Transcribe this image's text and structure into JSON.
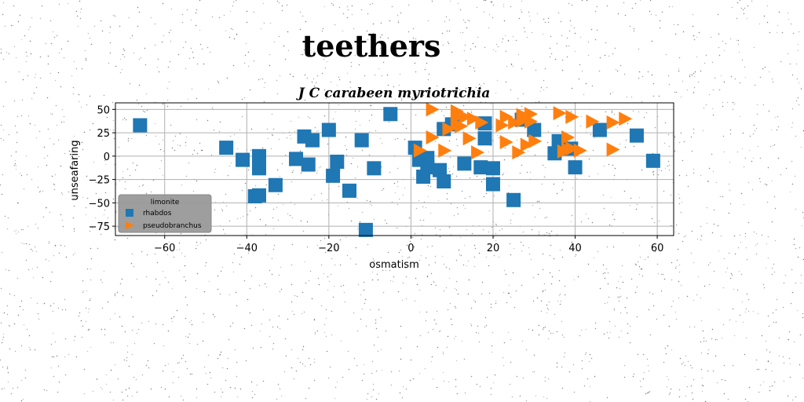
{
  "figure": {
    "suptitle": "teethers"
  },
  "chart_data": {
    "type": "scatter",
    "title": "J C carabeen myriotrichia",
    "xlabel": "osmatism",
    "ylabel": "unseafaring",
    "xlim": [
      -72,
      64
    ],
    "ylim": [
      -85,
      57
    ],
    "xticks": [
      -60,
      -40,
      -20,
      0,
      20,
      40,
      60
    ],
    "yticks": [
      -75,
      -50,
      -25,
      0,
      25,
      50
    ],
    "grid": true,
    "legend": {
      "title": "limonite",
      "placement": "lower-left"
    },
    "series": [
      {
        "name": "rhabdos",
        "marker": "square",
        "color": "#1f77b4",
        "points": [
          [
            -66,
            33
          ],
          [
            -45,
            9
          ],
          [
            -41,
            -4
          ],
          [
            -37,
            -13
          ],
          [
            -37,
            0
          ],
          [
            -38,
            -43
          ],
          [
            -37,
            -42
          ],
          [
            -33,
            -31
          ],
          [
            -28,
            -3
          ],
          [
            -26,
            21
          ],
          [
            -25,
            -9
          ],
          [
            -24,
            17
          ],
          [
            -20,
            28
          ],
          [
            -19,
            -21
          ],
          [
            -18,
            -6
          ],
          [
            -15,
            -37
          ],
          [
            -12,
            17
          ],
          [
            -11,
            -79
          ],
          [
            -9,
            -13
          ],
          [
            -5,
            45
          ],
          [
            1,
            9
          ],
          [
            2,
            -4
          ],
          [
            3,
            -22
          ],
          [
            4,
            -2
          ],
          [
            4,
            -12
          ],
          [
            7,
            -15
          ],
          [
            8,
            -27
          ],
          [
            8,
            29
          ],
          [
            10,
            34
          ],
          [
            13,
            -8
          ],
          [
            17,
            -12
          ],
          [
            18,
            35
          ],
          [
            18,
            19
          ],
          [
            20,
            -13
          ],
          [
            20,
            -30
          ],
          [
            25,
            -47
          ],
          [
            27,
            39
          ],
          [
            30,
            28
          ],
          [
            35,
            3
          ],
          [
            36,
            16
          ],
          [
            39,
            8
          ],
          [
            40,
            -12
          ],
          [
            46,
            28
          ],
          [
            55,
            22
          ],
          [
            59,
            -5
          ]
        ]
      },
      {
        "name": "pseudobranchus",
        "marker": "triangle-right",
        "color": "#ff7f0e",
        "points": [
          [
            2,
            6
          ],
          [
            5,
            50
          ],
          [
            5,
            20
          ],
          [
            8,
            6
          ],
          [
            9,
            29
          ],
          [
            11,
            48
          ],
          [
            11,
            42
          ],
          [
            11,
            34
          ],
          [
            12,
            32
          ],
          [
            13,
            42
          ],
          [
            14,
            19
          ],
          [
            15,
            40
          ],
          [
            16,
            4
          ],
          [
            17,
            36
          ],
          [
            22,
            33
          ],
          [
            23,
            42
          ],
          [
            23,
            15
          ],
          [
            25,
            36
          ],
          [
            26,
            4
          ],
          [
            27,
            44
          ],
          [
            27,
            38
          ],
          [
            28,
            12
          ],
          [
            29,
            37
          ],
          [
            29,
            45
          ],
          [
            30,
            16
          ],
          [
            36,
            46
          ],
          [
            37,
            5
          ],
          [
            38,
            20
          ],
          [
            38,
            7
          ],
          [
            39,
            8
          ],
          [
            39,
            42
          ],
          [
            41,
            6
          ],
          [
            44,
            37
          ],
          [
            49,
            7
          ],
          [
            49,
            36
          ],
          [
            52,
            40
          ]
        ]
      }
    ]
  }
}
